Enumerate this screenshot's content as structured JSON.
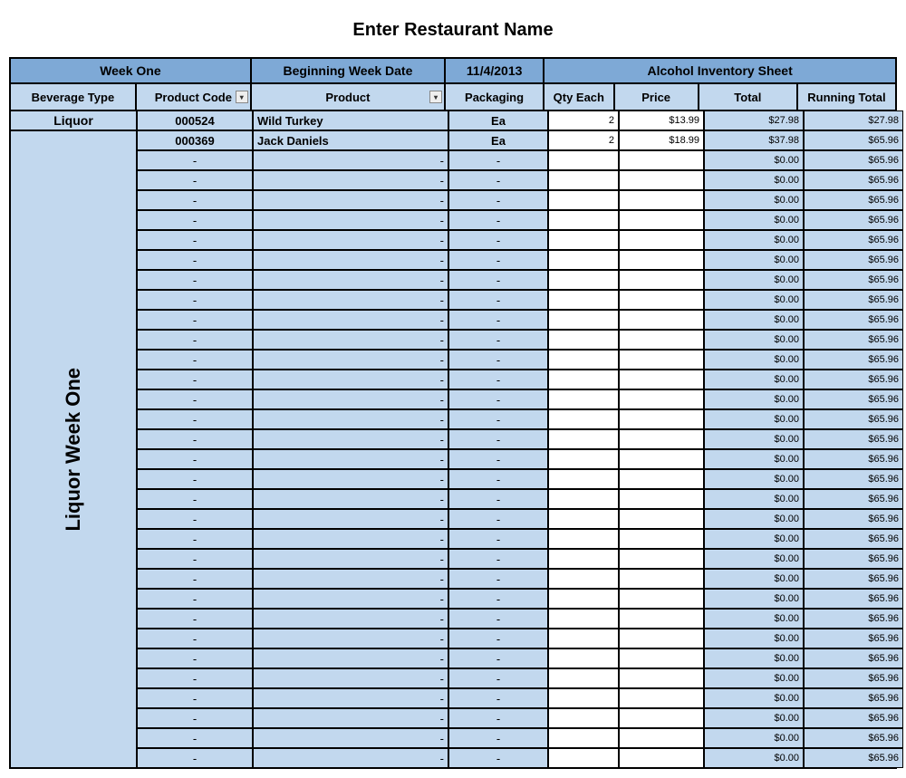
{
  "title": "Enter Restaurant Name",
  "header1": {
    "week": "Week One",
    "begin_label": "Beginning Week Date",
    "begin_date": "11/4/2013",
    "sheet_label": "Alcohol Inventory Sheet"
  },
  "header2": {
    "bevtype": "Beverage Type",
    "code": "Product Code",
    "product": "Product",
    "packaging": "Packaging",
    "qty": "Qty Each",
    "price": "Price",
    "total": "Total",
    "runtotal": "Running Total"
  },
  "bev_type_label": "Liquor",
  "sidebar_text": "Liquor Week One",
  "colors": {
    "header_bg": "#7ea9d6",
    "sub_bg": "#c2d8ee",
    "white": "#ffffff",
    "border": "#000000"
  },
  "rows": [
    {
      "code": "000524",
      "product": "Wild Turkey",
      "pack": "Ea",
      "qty": "2",
      "price": "$13.99",
      "total": "$27.98",
      "runtotal": "$27.98",
      "filled": true
    },
    {
      "code": "000369",
      "product": "Jack Daniels",
      "pack": "Ea",
      "qty": "2",
      "price": "$18.99",
      "total": "$37.98",
      "runtotal": "$65.96",
      "filled": true
    },
    {
      "code": "-",
      "product": "-",
      "pack": "-",
      "qty": "",
      "price": "",
      "total": "$0.00",
      "runtotal": "$65.96",
      "filled": false
    },
    {
      "code": "-",
      "product": "-",
      "pack": "-",
      "qty": "",
      "price": "",
      "total": "$0.00",
      "runtotal": "$65.96",
      "filled": false
    },
    {
      "code": "-",
      "product": "-",
      "pack": "-",
      "qty": "",
      "price": "",
      "total": "$0.00",
      "runtotal": "$65.96",
      "filled": false
    },
    {
      "code": "-",
      "product": "-",
      "pack": "-",
      "qty": "",
      "price": "",
      "total": "$0.00",
      "runtotal": "$65.96",
      "filled": false
    },
    {
      "code": "-",
      "product": "-",
      "pack": "-",
      "qty": "",
      "price": "",
      "total": "$0.00",
      "runtotal": "$65.96",
      "filled": false
    },
    {
      "code": "-",
      "product": "-",
      "pack": "-",
      "qty": "",
      "price": "",
      "total": "$0.00",
      "runtotal": "$65.96",
      "filled": false
    },
    {
      "code": "-",
      "product": "-",
      "pack": "-",
      "qty": "",
      "price": "",
      "total": "$0.00",
      "runtotal": "$65.96",
      "filled": false
    },
    {
      "code": "-",
      "product": "-",
      "pack": "-",
      "qty": "",
      "price": "",
      "total": "$0.00",
      "runtotal": "$65.96",
      "filled": false
    },
    {
      "code": "-",
      "product": "-",
      "pack": "-",
      "qty": "",
      "price": "",
      "total": "$0.00",
      "runtotal": "$65.96",
      "filled": false
    },
    {
      "code": "-",
      "product": "-",
      "pack": "-",
      "qty": "",
      "price": "",
      "total": "$0.00",
      "runtotal": "$65.96",
      "filled": false
    },
    {
      "code": "-",
      "product": "-",
      "pack": "-",
      "qty": "",
      "price": "",
      "total": "$0.00",
      "runtotal": "$65.96",
      "filled": false
    },
    {
      "code": "-",
      "product": "-",
      "pack": "-",
      "qty": "",
      "price": "",
      "total": "$0.00",
      "runtotal": "$65.96",
      "filled": false
    },
    {
      "code": "-",
      "product": "-",
      "pack": "-",
      "qty": "",
      "price": "",
      "total": "$0.00",
      "runtotal": "$65.96",
      "filled": false
    },
    {
      "code": "-",
      "product": "-",
      "pack": "-",
      "qty": "",
      "price": "",
      "total": "$0.00",
      "runtotal": "$65.96",
      "filled": false
    },
    {
      "code": "-",
      "product": "-",
      "pack": "-",
      "qty": "",
      "price": "",
      "total": "$0.00",
      "runtotal": "$65.96",
      "filled": false
    },
    {
      "code": "-",
      "product": "-",
      "pack": "-",
      "qty": "",
      "price": "",
      "total": "$0.00",
      "runtotal": "$65.96",
      "filled": false
    },
    {
      "code": "-",
      "product": "-",
      "pack": "-",
      "qty": "",
      "price": "",
      "total": "$0.00",
      "runtotal": "$65.96",
      "filled": false
    },
    {
      "code": "-",
      "product": "-",
      "pack": "-",
      "qty": "",
      "price": "",
      "total": "$0.00",
      "runtotal": "$65.96",
      "filled": false
    },
    {
      "code": "-",
      "product": "-",
      "pack": "-",
      "qty": "",
      "price": "",
      "total": "$0.00",
      "runtotal": "$65.96",
      "filled": false
    },
    {
      "code": "-",
      "product": "-",
      "pack": "-",
      "qty": "",
      "price": "",
      "total": "$0.00",
      "runtotal": "$65.96",
      "filled": false
    },
    {
      "code": "-",
      "product": "-",
      "pack": "-",
      "qty": "",
      "price": "",
      "total": "$0.00",
      "runtotal": "$65.96",
      "filled": false
    },
    {
      "code": "-",
      "product": "-",
      "pack": "-",
      "qty": "",
      "price": "",
      "total": "$0.00",
      "runtotal": "$65.96",
      "filled": false
    },
    {
      "code": "-",
      "product": "-",
      "pack": "-",
      "qty": "",
      "price": "",
      "total": "$0.00",
      "runtotal": "$65.96",
      "filled": false
    },
    {
      "code": "-",
      "product": "-",
      "pack": "-",
      "qty": "",
      "price": "",
      "total": "$0.00",
      "runtotal": "$65.96",
      "filled": false
    },
    {
      "code": "-",
      "product": "-",
      "pack": "-",
      "qty": "",
      "price": "",
      "total": "$0.00",
      "runtotal": "$65.96",
      "filled": false
    },
    {
      "code": "-",
      "product": "-",
      "pack": "-",
      "qty": "",
      "price": "",
      "total": "$0.00",
      "runtotal": "$65.96",
      "filled": false
    },
    {
      "code": "-",
      "product": "-",
      "pack": "-",
      "qty": "",
      "price": "",
      "total": "$0.00",
      "runtotal": "$65.96",
      "filled": false
    },
    {
      "code": "-",
      "product": "-",
      "pack": "-",
      "qty": "",
      "price": "",
      "total": "$0.00",
      "runtotal": "$65.96",
      "filled": false
    },
    {
      "code": "-",
      "product": "-",
      "pack": "-",
      "qty": "",
      "price": "",
      "total": "$0.00",
      "runtotal": "$65.96",
      "filled": false
    },
    {
      "code": "-",
      "product": "-",
      "pack": "-",
      "qty": "",
      "price": "",
      "total": "$0.00",
      "runtotal": "$65.96",
      "filled": false
    },
    {
      "code": "-",
      "product": "-",
      "pack": "-",
      "qty": "",
      "price": "",
      "total": "$0.00",
      "runtotal": "$65.96",
      "filled": false
    }
  ]
}
